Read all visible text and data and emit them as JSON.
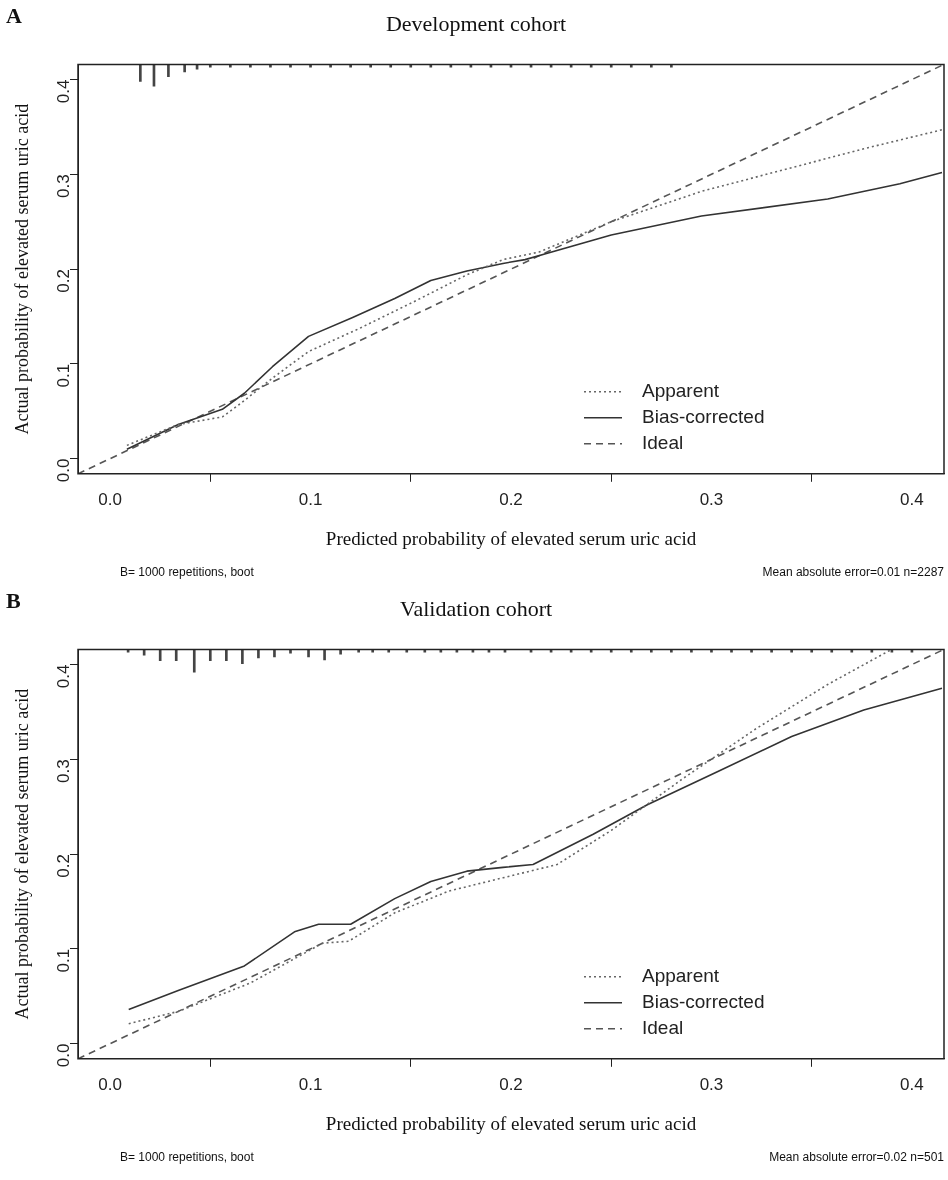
{
  "chart_data": [
    {
      "type": "line",
      "title": "Development cohort",
      "xlabel": "Predicted probability of elevated serum uric acid",
      "ylabel": "Actual probability of elevated serum uric acid",
      "annotations": [
        "A",
        "B= 1000 repetitions, boot",
        "Mean absolute error=0.01 n=2287"
      ],
      "xlim": [
        -0.016,
        0.416
      ],
      "ylim": [
        -0.016,
        0.416
      ],
      "xticks": [
        {
          "value": 0,
          "label": "0.0"
        },
        0.1,
        0.2,
        0.3,
        0.4
      ],
      "yticks": [
        {
          "value": 0,
          "label": "0.0"
        },
        0.1,
        0.2,
        0.3,
        0.4
      ],
      "grid": false,
      "legend": "bottom right",
      "marker": "none",
      "series": [
        {
          "type": "bar",
          "color": "#444444",
          "x": [
            0.0151,
            0.0219,
            0.0291,
            0.0372,
            0.0434,
            0.05,
            0.06,
            0.07,
            0.08,
            0.09,
            0.1,
            0.11,
            0.12,
            0.13,
            0.14,
            0.15,
            0.16,
            0.17,
            0.18,
            0.19,
            0.2,
            0.21,
            0.22,
            0.23,
            0.24,
            0.25,
            0.26,
            0.27,
            0.28
          ],
          "base": [
            0.416,
            0.416,
            0.416,
            0.416,
            0.416,
            0.416,
            0.416,
            0.416,
            0.416,
            0.416,
            0.416,
            0.416,
            0.416,
            0.416,
            0.416,
            0.416,
            0.416,
            0.416,
            0.416,
            0.416,
            0.416,
            0.416,
            0.416,
            0.416,
            0.416,
            0.416,
            0.416,
            0.416,
            0.416
          ],
          "values": [
            -0.018,
            -0.023,
            -0.013,
            -0.008,
            -0.005,
            -0.003,
            -0.003,
            -0.003,
            -0.003,
            -0.003,
            -0.003,
            -0.003,
            -0.003,
            -0.003,
            -0.003,
            -0.003,
            -0.003,
            -0.003,
            -0.003,
            -0.003,
            -0.003,
            -0.003,
            -0.003,
            -0.003,
            -0.003,
            -0.003,
            -0.003,
            -0.003,
            -0.003
          ]
        },
        {
          "name": "Apparent",
          "line_style": "dotted",
          "color": "#666666",
          "x": [
            0.0084,
            0.034,
            0.056,
            0.065,
            0.081,
            0.099,
            0.124,
            0.151,
            0.178,
            0.196,
            0.214,
            0.25,
            0.295,
            0.34,
            0.376,
            0.415
          ],
          "values": [
            0.014,
            0.036,
            0.044,
            0.058,
            0.085,
            0.113,
            0.137,
            0.165,
            0.194,
            0.21,
            0.218,
            0.25,
            0.282,
            0.307,
            0.327,
            0.347
          ]
        },
        {
          "name": "Bias-corrected",
          "line_style": "solid",
          "color": "#333333",
          "x": [
            0.0084,
            0.034,
            0.056,
            0.067,
            0.081,
            0.099,
            0.121,
            0.142,
            0.16,
            0.178,
            0.196,
            0.207,
            0.25,
            0.295,
            0.358,
            0.394,
            0.415
          ],
          "values": [
            0.01,
            0.036,
            0.052,
            0.069,
            0.097,
            0.129,
            0.149,
            0.169,
            0.188,
            0.198,
            0.206,
            0.21,
            0.236,
            0.256,
            0.274,
            0.29,
            0.302
          ]
        },
        {
          "name": "Ideal",
          "line_style": "dashed",
          "color": "#555555",
          "x": [
            -0.016,
            0.416
          ],
          "values": [
            -0.016,
            0.416
          ]
        }
      ]
    },
    {
      "type": "line",
      "title": "Validation cohort",
      "xlabel": "Predicted probability of elevated serum uric acid",
      "ylabel": "Actual probability of elevated serum uric acid",
      "annotations": [
        "B",
        "B= 1000 repetitions, boot",
        "Mean absolute error=0.02 n=501"
      ],
      "xlim": [
        -0.016,
        0.416
      ],
      "ylim": [
        -0.016,
        0.416
      ],
      "xticks": [
        {
          "value": 0,
          "label": "0.0"
        },
        0.1,
        0.2,
        0.3,
        0.4
      ],
      "yticks": [
        {
          "value": 0,
          "label": "0.0"
        },
        0.1,
        0.2,
        0.3,
        0.4
      ],
      "grid": false,
      "legend": "bottom right",
      "marker": "none",
      "series": [
        {
          "type": "bar",
          "color": "#444444",
          "x": [
            0.009,
            0.017,
            0.025,
            0.033,
            0.042,
            0.05,
            0.058,
            0.066,
            0.074,
            0.082,
            0.09,
            0.099,
            0.107,
            0.115,
            0.124,
            0.131,
            0.139,
            0.148,
            0.157,
            0.165,
            0.173,
            0.181,
            0.189,
            0.197,
            0.21,
            0.22,
            0.23,
            0.24,
            0.25,
            0.26,
            0.27,
            0.28,
            0.29,
            0.3,
            0.31,
            0.32,
            0.33,
            0.34,
            0.35,
            0.36,
            0.37,
            0.38,
            0.39,
            0.4
          ],
          "base": [
            0.416,
            0.416,
            0.416,
            0.416,
            0.416,
            0.416,
            0.416,
            0.416,
            0.416,
            0.416,
            0.416,
            0.416,
            0.416,
            0.416,
            0.416,
            0.416,
            0.416,
            0.416,
            0.416,
            0.416,
            0.416,
            0.416,
            0.416,
            0.416,
            0.416,
            0.416,
            0.416,
            0.416,
            0.416,
            0.416,
            0.416,
            0.416,
            0.416,
            0.416,
            0.416,
            0.416,
            0.416,
            0.416,
            0.416,
            0.416,
            0.416,
            0.416,
            0.416,
            0.416
          ],
          "values": [
            -0.003,
            -0.006,
            -0.012,
            -0.012,
            -0.024,
            -0.012,
            -0.012,
            -0.015,
            -0.009,
            -0.008,
            -0.004,
            -0.008,
            -0.011,
            -0.005,
            -0.003,
            -0.003,
            -0.003,
            -0.003,
            -0.003,
            -0.003,
            -0.003,
            -0.003,
            -0.003,
            -0.003,
            -0.003,
            -0.003,
            -0.003,
            -0.003,
            -0.003,
            -0.003,
            -0.003,
            -0.003,
            -0.003,
            -0.003,
            -0.003,
            -0.003,
            -0.003,
            -0.003,
            -0.003,
            -0.003,
            -0.003,
            -0.003,
            -0.003,
            -0.003
          ]
        },
        {
          "name": "Apparent",
          "line_style": "dotted",
          "color": "#666666",
          "x": [
            0.0093,
            0.034,
            0.07,
            0.106,
            0.119,
            0.142,
            0.169,
            0.196,
            0.223,
            0.25,
            0.286,
            0.322,
            0.358,
            0.389
          ],
          "values": [
            0.021,
            0.034,
            0.064,
            0.106,
            0.108,
            0.138,
            0.161,
            0.175,
            0.189,
            0.225,
            0.28,
            0.332,
            0.379,
            0.415
          ]
        },
        {
          "name": "Bias-corrected",
          "line_style": "solid",
          "color": "#333333",
          "x": [
            0.0093,
            0.034,
            0.067,
            0.092,
            0.104,
            0.12,
            0.142,
            0.16,
            0.178,
            0.196,
            0.211,
            0.241,
            0.268,
            0.304,
            0.34,
            0.376,
            0.415
          ],
          "values": [
            0.036,
            0.056,
            0.082,
            0.118,
            0.126,
            0.126,
            0.153,
            0.171,
            0.182,
            0.186,
            0.189,
            0.221,
            0.252,
            0.288,
            0.324,
            0.352,
            0.375
          ]
        },
        {
          "name": "Ideal",
          "line_style": "dashed",
          "color": "#555555",
          "x": [
            -0.016,
            0.416
          ],
          "values": [
            -0.016,
            0.416
          ]
        }
      ]
    }
  ]
}
